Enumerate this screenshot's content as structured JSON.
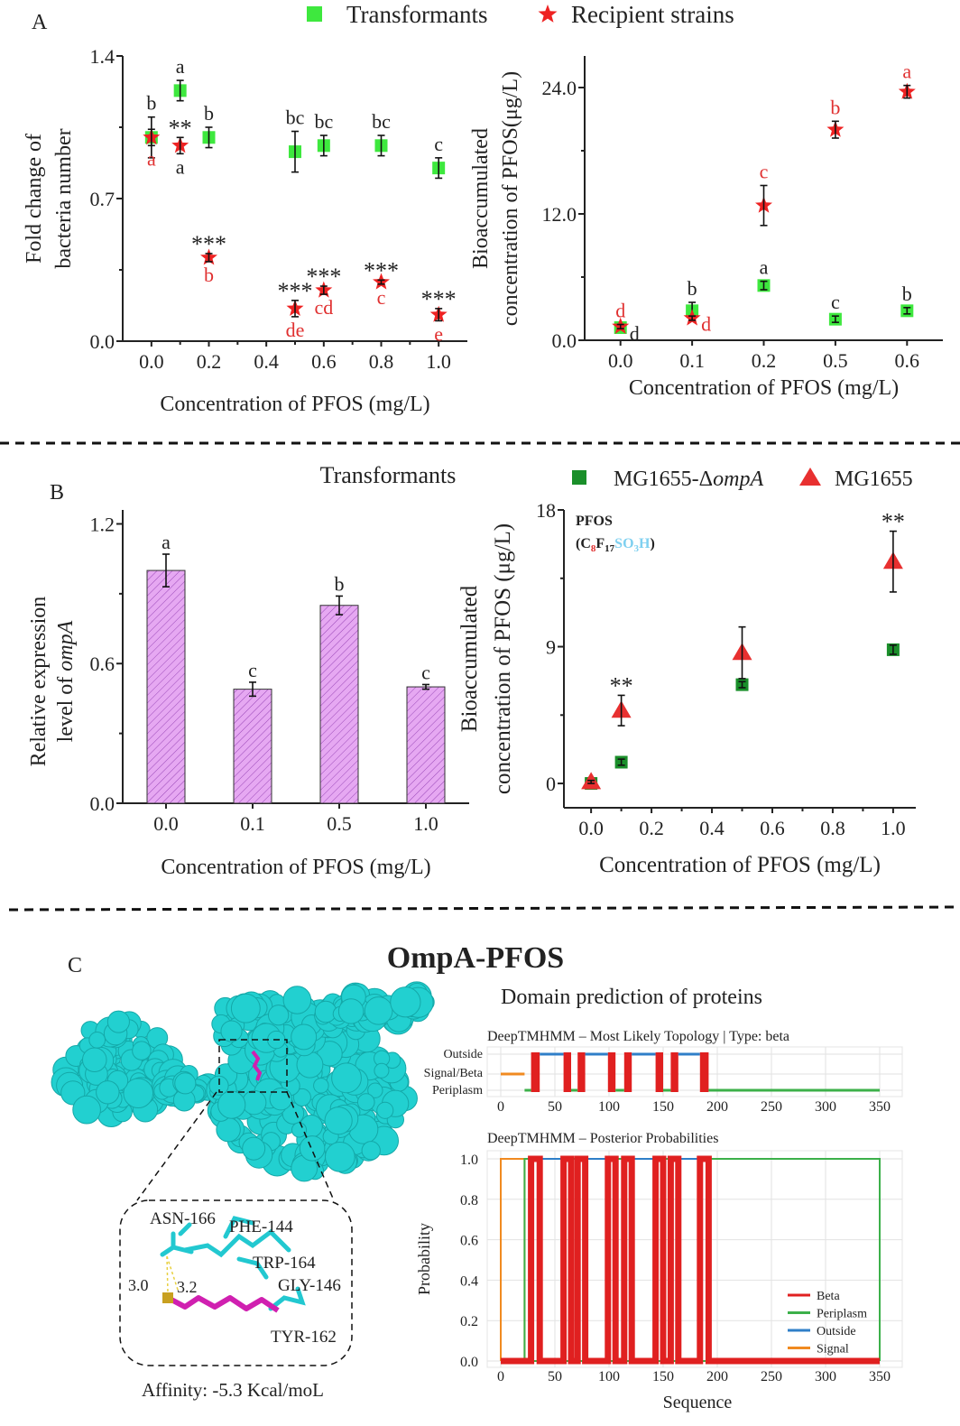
{
  "panel_labels": {
    "a": "A",
    "b": "B",
    "c": "C"
  },
  "legend_a": {
    "transformants": "Transformants",
    "recipient": "Recipient strains"
  },
  "title_b1": "Transformants",
  "legend_b": {
    "mutant_prefix": "MG1655-Δ",
    "mutant_italic": "ompA",
    "wild": "MG1655"
  },
  "formula": {
    "name": "PFOS",
    "parts": [
      {
        "text": "(C",
        "color": "#222222",
        "sub": false
      },
      {
        "text": "8",
        "color": "#e03030",
        "sub": true
      },
      {
        "text": "F",
        "color": "#222222",
        "sub": false
      },
      {
        "text": "17",
        "color": "#222222",
        "sub": true
      },
      {
        "text": "SO",
        "color": "#7fd0f0",
        "sub": false
      },
      {
        "text": "3",
        "color": "#7fd0f0",
        "sub": true
      },
      {
        "text": "H",
        "color": "#7fd0f0",
        "sub": false
      },
      {
        "text": ")",
        "color": "#222222",
        "sub": false
      }
    ]
  },
  "panel_c": {
    "title": "OmpA-PFOS",
    "domain_title": "Domain prediction of proteins",
    "residues": [
      "ASN-166",
      "PHE-144",
      "TRP-164",
      "GLY-146",
      "TYR-162"
    ],
    "distances": [
      "3.0",
      "3.2"
    ],
    "affinity": "Affinity: -5.3 Kcal/moL",
    "protein_color": "#22d0d0",
    "ligand_color": "#d020b0"
  },
  "colors": {
    "transformant_green": "#3ee83e",
    "recipient_red": "#ee2222",
    "mutant_green": "#1a8f2a",
    "wild_red": "#e83030",
    "bar_fill": "#e6a8f2",
    "bar_hatch": "#9a48b8"
  },
  "chart_data": [
    {
      "type": "scatter",
      "xlabel": "Concentration of PFOS (mg/L)",
      "ylabel": [
        "Fold change of",
        "bacteria number"
      ],
      "xlim": [
        -0.1,
        1.1
      ],
      "ylim": [
        0,
        1.4
      ],
      "xticks": [
        0,
        0.2,
        0.4,
        0.6,
        0.8,
        1.0
      ],
      "xtick_labels": [
        "0.0",
        "0.2",
        "0.4",
        "0.6",
        "0.8",
        "1.0"
      ],
      "yticks": [
        0,
        0.7,
        1.4
      ],
      "ytick_labels": [
        "0.0",
        "0.7",
        "1.4"
      ],
      "series": [
        {
          "name": "Transformants",
          "marker": "square",
          "color": "#3ee83e",
          "points": [
            {
              "x": 0.0,
              "y": 1.0,
              "err": 0.1,
              "label": "b",
              "pos": "above",
              "label_color": "#222222"
            },
            {
              "x": 0.1,
              "y": 1.23,
              "err": 0.05,
              "label": "a",
              "pos": "above",
              "label_color": "#222222"
            },
            {
              "x": 0.2,
              "y": 1.0,
              "err": 0.05,
              "label": "b",
              "pos": "above",
              "label_color": "#222222"
            },
            {
              "x": 0.5,
              "y": 0.93,
              "err": 0.1,
              "label": "bc",
              "pos": "above",
              "label_color": "#222222"
            },
            {
              "x": 0.6,
              "y": 0.96,
              "err": 0.05,
              "label": "bc",
              "pos": "above",
              "label_color": "#222222"
            },
            {
              "x": 0.8,
              "y": 0.96,
              "err": 0.05,
              "label": "bc",
              "pos": "above",
              "label_color": "#222222"
            },
            {
              "x": 1.0,
              "y": 0.85,
              "err": 0.05,
              "label": "c",
              "pos": "above",
              "label_color": "#222222"
            }
          ]
        },
        {
          "name": "Recipient strains",
          "marker": "star",
          "color": "#ee2222",
          "points": [
            {
              "x": 0.0,
              "y": 1.0,
              "err": 0.04,
              "label": "a",
              "pos": "below",
              "label_color": "#e03030",
              "sig": ""
            },
            {
              "x": 0.1,
              "y": 0.96,
              "err": 0.04,
              "label": "a",
              "pos": "below",
              "label_color": "#222222",
              "sig": "**"
            },
            {
              "x": 0.2,
              "y": 0.41,
              "err": 0.02,
              "label": "b",
              "pos": "below",
              "label_color": "#e03030",
              "sig": "***"
            },
            {
              "x": 0.5,
              "y": 0.16,
              "err": 0.04,
              "label": "de",
              "pos": "below",
              "label_color": "#e03030",
              "sig": "***"
            },
            {
              "x": 0.6,
              "y": 0.25,
              "err": 0.02,
              "label": "cd",
              "pos": "below",
              "label_color": "#e03030",
              "sig": "***"
            },
            {
              "x": 0.8,
              "y": 0.29,
              "err": 0.01,
              "label": "c",
              "pos": "below",
              "label_color": "#e03030",
              "sig": "***"
            },
            {
              "x": 1.0,
              "y": 0.13,
              "err": 0.03,
              "label": "e",
              "pos": "below",
              "label_color": "#e03030",
              "sig": "***"
            }
          ]
        }
      ]
    },
    {
      "type": "scatter",
      "xlabel": "Concentration of PFOS (mg/L)",
      "ylabel": [
        "Bioaccumulated",
        "concentration of PFOS(μg/L)"
      ],
      "categories": [
        "0.0",
        "0.1",
        "0.2",
        "0.5",
        "0.6"
      ],
      "ylim": [
        0,
        27
      ],
      "yticks": [
        0,
        12,
        24
      ],
      "ytick_labels": [
        "0.0",
        "12.0",
        "24.0"
      ],
      "series": [
        {
          "name": "Transformants",
          "marker": "square",
          "color": "#3ee83e",
          "points": [
            {
              "x": "0.0",
              "y": 1.2,
              "err": 0.2,
              "label": "d",
              "pos": "right",
              "label_color": "#222222"
            },
            {
              "x": "0.1",
              "y": 2.8,
              "err": 0.8,
              "label": "b",
              "pos": "above",
              "label_color": "#222222"
            },
            {
              "x": "0.2",
              "y": 5.2,
              "err": 0.4,
              "label": "a",
              "pos": "above",
              "label_color": "#222222"
            },
            {
              "x": "0.5",
              "y": 2.0,
              "err": 0.3,
              "label": "c",
              "pos": "above",
              "label_color": "#222222"
            },
            {
              "x": "0.6",
              "y": 2.8,
              "err": 0.3,
              "label": "b",
              "pos": "above",
              "label_color": "#222222"
            }
          ]
        },
        {
          "name": "Recipient strains",
          "marker": "star",
          "color": "#ee2222",
          "points": [
            {
              "x": "0.0",
              "y": 1.3,
              "err": 0.2,
              "label": "d",
              "pos": "above",
              "label_color": "#e03030"
            },
            {
              "x": "0.1",
              "y": 2.1,
              "err": 0.2,
              "label": "d",
              "pos": "right",
              "label_color": "#e03030"
            },
            {
              "x": "0.2",
              "y": 12.8,
              "err": 1.9,
              "label": "c",
              "pos": "above",
              "label_color": "#e03030"
            },
            {
              "x": "0.5",
              "y": 20.0,
              "err": 0.8,
              "label": "b",
              "pos": "above",
              "label_color": "#e03030"
            },
            {
              "x": "0.6",
              "y": 23.6,
              "err": 0.6,
              "label": "a",
              "pos": "above",
              "label_color": "#e03030"
            }
          ]
        }
      ]
    },
    {
      "type": "bar",
      "title": "Transformants",
      "xlabel": "Concentration of PFOS (mg/L)",
      "ylabel": [
        "Relative expression",
        "level of ",
        "ompA"
      ],
      "categories": [
        "0.0",
        "0.1",
        "0.5",
        "1.0"
      ],
      "values": [
        1.0,
        0.49,
        0.85,
        0.5
      ],
      "errors": [
        0.07,
        0.03,
        0.04,
        0.01
      ],
      "labels": [
        "a",
        "c",
        "b",
        "c"
      ],
      "ylim": [
        0,
        1.26
      ],
      "yticks": [
        0,
        0.6,
        1.2
      ],
      "ytick_labels": [
        "0.0",
        "0.6",
        "1.2"
      ]
    },
    {
      "type": "scatter",
      "xlabel": "Concentration of PFOS (mg/L)",
      "ylabel": [
        "Bioaccumulated",
        "concentration of PFOS (μg/L)"
      ],
      "xlim": [
        -0.09,
        1.075
      ],
      "ylim": [
        -1.6,
        18
      ],
      "xticks": [
        0,
        0.2,
        0.4,
        0.6,
        0.8,
        1.0
      ],
      "xtick_labels": [
        "0.0",
        "0.2",
        "0.4",
        "0.6",
        "0.8",
        "1.0"
      ],
      "yticks": [
        0,
        9,
        18
      ],
      "ytick_labels": [
        "0",
        "9",
        "18"
      ],
      "series": [
        {
          "name": "MG1655-ΔompA",
          "marker": "square",
          "color": "#1a8f2a",
          "points": [
            {
              "x": 0.0,
              "y": 0.0,
              "err": 0.1
            },
            {
              "x": 0.1,
              "y": 1.4,
              "err": 0.2
            },
            {
              "x": 0.5,
              "y": 6.5,
              "err": 0.2
            },
            {
              "x": 1.0,
              "y": 8.8,
              "err": 0.3
            }
          ]
        },
        {
          "name": "MG1655",
          "marker": "triangle",
          "color": "#e83030",
          "points": [
            {
              "x": 0.0,
              "y": 0.1,
              "err": 0.1,
              "sig": ""
            },
            {
              "x": 0.1,
              "y": 4.8,
              "err": 1.0,
              "sig": "**"
            },
            {
              "x": 0.5,
              "y": 8.6,
              "err": 1.7,
              "sig": ""
            },
            {
              "x": 1.0,
              "y": 14.6,
              "err": 2.0,
              "sig": "**"
            }
          ]
        }
      ]
    },
    {
      "type": "line",
      "title": "DeepTMHMM  – Most Likely  Topology | Type: beta",
      "xlim": [
        0,
        350
      ],
      "xtick_labels": [
        "0",
        "50",
        "100",
        "150",
        "200",
        "250",
        "300",
        "350"
      ],
      "ytick_labels": [
        "Outside",
        "Signal/Beta",
        "Periplasm"
      ],
      "segments": [
        {
          "class": "signal",
          "start": 0,
          "end": 22
        },
        {
          "class": "periplasm",
          "start": 22,
          "end": 28
        },
        {
          "class": "beta",
          "start": 28,
          "end": 36
        },
        {
          "class": "outside",
          "start": 36,
          "end": 58
        },
        {
          "class": "beta",
          "start": 58,
          "end": 65
        },
        {
          "class": "periplasm",
          "start": 65,
          "end": 71
        },
        {
          "class": "beta",
          "start": 71,
          "end": 78
        },
        {
          "class": "outside",
          "start": 78,
          "end": 99
        },
        {
          "class": "beta",
          "start": 99,
          "end": 106
        },
        {
          "class": "periplasm",
          "start": 106,
          "end": 114
        },
        {
          "class": "beta",
          "start": 114,
          "end": 121
        },
        {
          "class": "outside",
          "start": 121,
          "end": 143
        },
        {
          "class": "beta",
          "start": 143,
          "end": 150
        },
        {
          "class": "periplasm",
          "start": 150,
          "end": 157
        },
        {
          "class": "beta",
          "start": 157,
          "end": 164
        },
        {
          "class": "outside",
          "start": 164,
          "end": 184
        },
        {
          "class": "beta",
          "start": 184,
          "end": 192
        },
        {
          "class": "periplasm",
          "start": 192,
          "end": 350
        }
      ]
    },
    {
      "type": "line",
      "title": "DeepTMHMM  – Posterior Probabilities",
      "xlabel": "Sequence",
      "ylabel": "Probability",
      "xlim": [
        0,
        350
      ],
      "ylim": [
        0,
        1
      ],
      "xtick_labels": [
        "0",
        "50",
        "100",
        "150",
        "200",
        "250",
        "300",
        "350"
      ],
      "ytick_labels": [
        "0.0",
        "0.2",
        "0.4",
        "0.6",
        "0.8",
        "1.0"
      ],
      "legend": "bottom-right",
      "series": [
        {
          "name": "Beta",
          "color": "#e02020",
          "intervals": [
            [
              28,
              36
            ],
            [
              58,
              65
            ],
            [
              71,
              78
            ],
            [
              99,
              106
            ],
            [
              114,
              121
            ],
            [
              143,
              150
            ],
            [
              157,
              164
            ],
            [
              184,
              192
            ]
          ]
        },
        {
          "name": "Periplasm",
          "color": "#3cb04a",
          "intervals": [
            [
              22,
              28
            ],
            [
              65,
              71
            ],
            [
              106,
              114
            ],
            [
              150,
              157
            ],
            [
              192,
              350
            ]
          ]
        },
        {
          "name": "Outside",
          "color": "#2f7fc8",
          "intervals": [
            [
              36,
              58
            ],
            [
              78,
              99
            ],
            [
              121,
              143
            ],
            [
              164,
              184
            ]
          ]
        },
        {
          "name": "Signal",
          "color": "#f08a20",
          "intervals": [
            [
              0,
              22
            ]
          ]
        }
      ]
    }
  ]
}
